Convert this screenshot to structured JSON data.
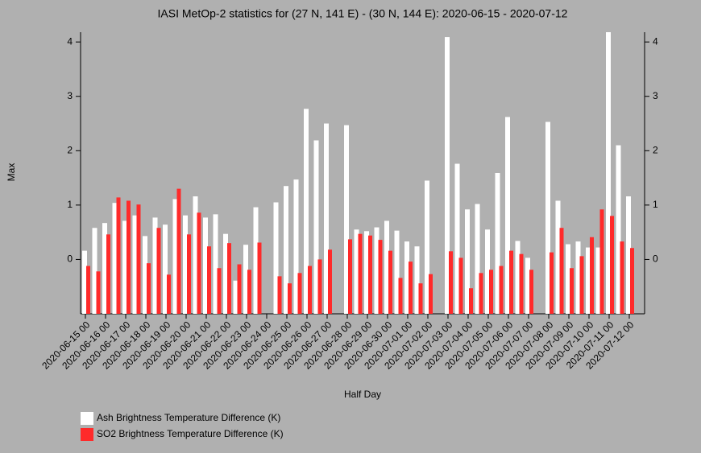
{
  "chart_data": {
    "type": "bar",
    "title": "IASI MetOp-2 statistics for (27 N, 141 E) - (30 N, 144 E): 2020-06-15 - 2020-07-12",
    "xlabel": "Half Day",
    "ylabel": "Max",
    "categories": [
      "2020-06-15 00",
      null,
      "2020-06-16 00",
      null,
      "2020-06-17 00",
      null,
      "2020-06-18 00",
      null,
      "2020-06-19 00",
      null,
      "2020-06-20 00",
      null,
      "2020-06-21 00",
      null,
      "2020-06-22 00",
      null,
      "2020-06-23 00",
      null,
      "2020-06-24 00",
      null,
      "2020-06-25 00",
      null,
      "2020-06-26 00",
      null,
      "2020-06-27 00",
      null,
      "2020-06-28 00",
      null,
      "2020-06-29 00",
      null,
      "2020-06-30 00",
      null,
      "2020-07-01 00",
      null,
      "2020-07-02 00",
      null,
      "2020-07-03 00",
      null,
      "2020-07-04 00",
      null,
      "2020-07-05 00",
      null,
      "2020-07-06 00",
      null,
      "2020-07-07 00",
      null,
      "2020-07-08 00",
      null,
      "2020-07-09 00",
      null,
      "2020-07-10 00",
      null,
      "2020-07-11 00",
      null,
      "2020-07-12 00"
    ],
    "series": [
      {
        "name": "Ash Brightness Temperature Difference (K)",
        "color": "#ffffff",
        "values": [
          0.16,
          0.58,
          0.67,
          1.04,
          0.71,
          0.81,
          0.43,
          0.77,
          0.64,
          1.11,
          0.81,
          1.16,
          0.77,
          0.83,
          0.47,
          -0.39,
          0.27,
          0.96,
          null,
          1.05,
          1.35,
          1.47,
          2.77,
          2.19,
          2.5,
          null,
          2.47,
          0.55,
          0.52,
          0.59,
          0.71,
          0.53,
          0.33,
          0.24,
          1.45,
          null,
          4.09,
          1.76,
          0.92,
          1.02,
          0.55,
          1.59,
          2.62,
          0.34,
          0.03,
          null,
          2.53,
          1.08,
          0.28,
          0.33,
          0.22,
          0.22,
          4.18,
          2.1,
          1.16
        ]
      },
      {
        "name": "SO2 Brightness Temperature Difference (K)",
        "color": "#ff2a2a",
        "values": [
          -0.12,
          -0.22,
          0.46,
          1.14,
          1.08,
          1.01,
          -0.07,
          0.58,
          -0.28,
          1.3,
          0.46,
          0.86,
          0.24,
          -0.16,
          0.3,
          -0.09,
          -0.19,
          0.31,
          null,
          -0.31,
          -0.44,
          -0.25,
          -0.12,
          0.0,
          0.18,
          null,
          0.37,
          0.47,
          0.44,
          0.36,
          0.16,
          -0.34,
          -0.04,
          -0.44,
          -0.27,
          null,
          0.15,
          0.03,
          -0.53,
          -0.25,
          -0.19,
          -0.12,
          0.16,
          0.1,
          -0.19,
          null,
          0.13,
          0.58,
          -0.16,
          0.06,
          0.41,
          0.92,
          0.8,
          0.33,
          0.21
        ]
      }
    ],
    "ylim": [
      -1,
      4.18
    ],
    "yticks": [
      0,
      1,
      2,
      3,
      4
    ]
  }
}
